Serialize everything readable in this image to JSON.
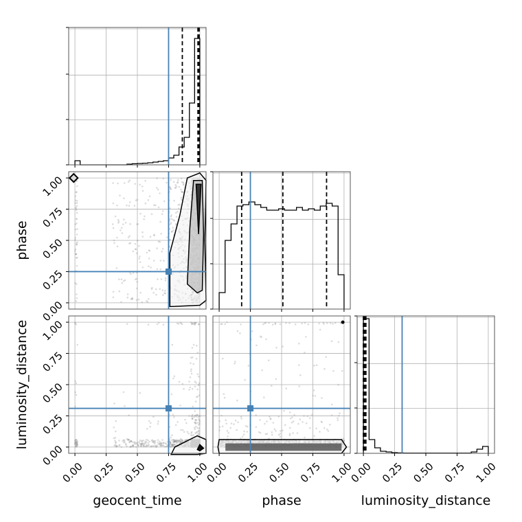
{
  "chart_data": {
    "type": "corner",
    "parameters": [
      "geocent_time",
      "phase",
      "luminosity_distance"
    ],
    "axis_range": [
      -0.05,
      1.05
    ],
    "tick_labels": [
      "0.00",
      "0.25",
      "0.50",
      "0.75",
      "1.00"
    ],
    "tick_values": [
      0,
      0.25,
      0.5,
      0.75,
      1.0
    ],
    "grid": true,
    "truth_color": "#4682b4",
    "truths": {
      "geocent_time": 0.75,
      "phase": 0.25,
      "luminosity_distance": 0.31
    },
    "quantiles": {
      "geocent_time": [
        0.86,
        0.985,
        0.995
      ],
      "phase": [
        0.18,
        0.51,
        0.86
      ],
      "luminosity_distance": [
        0.0,
        0.01,
        0.02
      ]
    },
    "histograms": {
      "geocent_time": [
        0.03,
        0,
        0,
        0,
        0,
        0,
        0,
        0,
        0,
        0,
        0.005,
        0.008,
        0.01,
        0.012,
        0.015,
        0.02,
        0.025,
        0.03,
        0.05,
        0.07,
        0.13,
        0.2,
        0.45,
        0.92
      ],
      "phase": [
        0.12,
        0.5,
        0.62,
        0.75,
        0.76,
        0.78,
        0.76,
        0.74,
        0.72,
        0.72,
        0.73,
        0.72,
        0.72,
        0.74,
        0.72,
        0.73,
        0.72,
        0.75,
        0.77,
        0.75,
        0.25
      ],
      "luminosity_distance": [
        0.98,
        0.1,
        0.04,
        0.015,
        0.01,
        0.005,
        0.003,
        0.002,
        0.002,
        0.002,
        0.002,
        0.002,
        0.002,
        0.002,
        0.002,
        0.002,
        0.002,
        0.002,
        0.002,
        0.01,
        0.03,
        0.05
      ]
    }
  }
}
